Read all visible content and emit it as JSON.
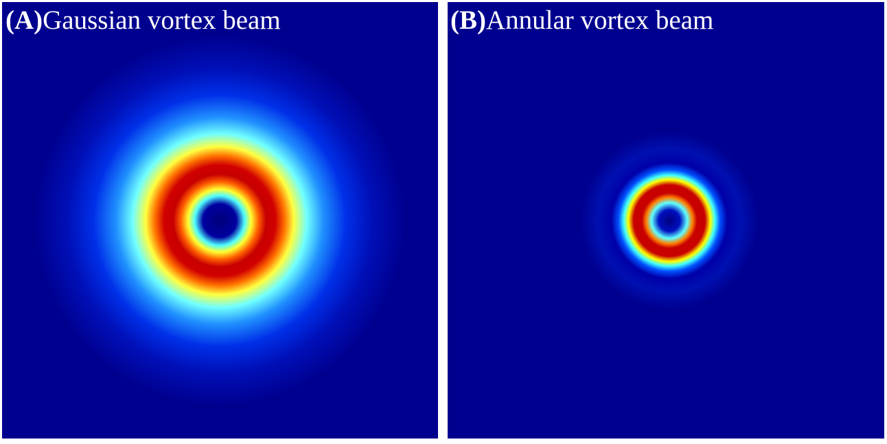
{
  "panels": [
    {
      "label": "(A)",
      "title": "Gaussian vortex beam"
    },
    {
      "label": "(B)",
      "title": "Annular vortex beam"
    }
  ]
}
